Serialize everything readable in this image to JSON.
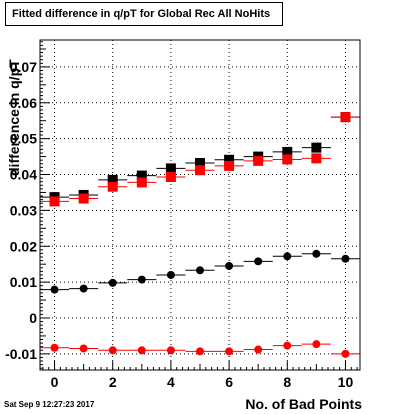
{
  "chart_data": {
    "type": "scatter",
    "title": "Fitted difference in q/pT for Global Rec All NoHits",
    "xlabel": "No. of Bad Points",
    "ylabel": "difference in q/pT",
    "xlim": [
      -0.5,
      10.5
    ],
    "ylim": [
      -0.0145,
      0.0775
    ],
    "grid": true,
    "x_ticks": [
      0,
      2,
      4,
      6,
      8,
      10
    ],
    "y_ticks": [
      -0.01,
      0,
      0.01,
      0.02,
      0.03,
      0.04,
      0.05,
      0.06,
      0.07
    ],
    "y_tick_labels": [
      "-0.01",
      "0",
      "0.01",
      "0.02",
      "0.03",
      "0.04",
      "0.05",
      "0.06",
      "0.07"
    ],
    "x": [
      0,
      1,
      2,
      3,
      4,
      5,
      6,
      7,
      8,
      9,
      10
    ],
    "series": [
      {
        "marker": "square",
        "color": "#000000",
        "values": [
          0.0337,
          0.0343,
          0.0385,
          0.0397,
          0.0417,
          0.0432,
          0.0441,
          0.045,
          0.0463,
          0.0475,
          0.056
        ]
      },
      {
        "marker": "square",
        "color": "#ff0000",
        "values": [
          0.0325,
          0.0333,
          0.0366,
          0.0378,
          0.0393,
          0.0412,
          0.0424,
          0.0438,
          0.0442,
          0.0445,
          0.056
        ]
      },
      {
        "marker": "circle",
        "color": "#000000",
        "values": [
          0.0079,
          0.0082,
          0.0098,
          0.0107,
          0.012,
          0.0133,
          0.0145,
          0.0158,
          0.0172,
          0.0179,
          0.0165
        ]
      },
      {
        "marker": "circle",
        "color": "#ff0000",
        "values": [
          -0.0083,
          -0.0085,
          -0.009,
          -0.009,
          -0.009,
          -0.0093,
          -0.0093,
          -0.0088,
          -0.0077,
          -0.0073,
          -0.01
        ]
      }
    ]
  },
  "footer": {
    "timestamp": "Sat Sep  9 12:27:23 2017"
  }
}
